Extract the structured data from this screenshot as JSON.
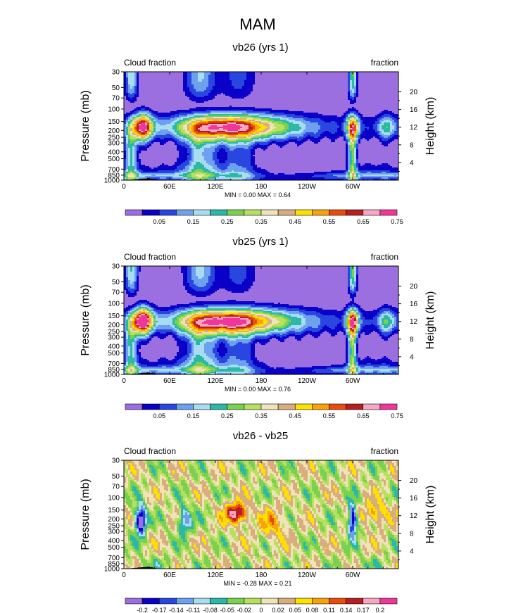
{
  "figure": {
    "title": "MAM"
  },
  "panels": [
    {
      "title": "vb26 (yrs 1)",
      "left_label": "Cloud fraction",
      "right_label": "fraction",
      "ylabel_left": "Pressure (mb)",
      "ylabel_right": "Height (km)",
      "minmax": "MIN =   0.00  MAX =   0.64",
      "kind": "abs",
      "max": 0.64,
      "colorbar": {
        "labels": [
          "0.05",
          "0.15",
          "0.25",
          "0.35",
          "0.45",
          "0.55",
          "0.65",
          "0.75"
        ]
      }
    },
    {
      "title": "vb25 (yrs 1)",
      "left_label": "Cloud fraction",
      "right_label": "fraction",
      "ylabel_left": "Pressure (mb)",
      "ylabel_right": "Height (km)",
      "minmax": "MIN =   0.00  MAX =   0.76",
      "kind": "abs",
      "max": 0.76,
      "colorbar": {
        "labels": [
          "0.05",
          "0.15",
          "0.25",
          "0.35",
          "0.45",
          "0.55",
          "0.65",
          "0.75"
        ]
      }
    },
    {
      "title": "vb26 - vb25",
      "left_label": "Cloud fraction",
      "right_label": "fraction",
      "ylabel_left": "Pressure (mb)",
      "ylabel_right": "Height (km)",
      "minmax": "MIN =  -0.28  MAX =   0.21",
      "kind": "diff",
      "max": 0.21,
      "colorbar": {
        "labels": [
          "-0.2",
          "-0.17",
          "-0.14",
          "-0.11",
          "-0.08",
          "-0.05",
          "-0.02",
          "0",
          "0.02",
          "0.05",
          "0.08",
          "0.11",
          "0.14",
          "0.17",
          "0.2"
        ]
      }
    }
  ],
  "chart_data": {
    "type": "heatmap",
    "title": "MAM",
    "variable": "Cloud fraction",
    "units": "fraction",
    "x_ticks": [
      "0",
      "60E",
      "120E",
      "180",
      "120W",
      "60W"
    ],
    "x_tick_lon": [
      0,
      60,
      120,
      180,
      240,
      300
    ],
    "xlim": [
      0,
      360
    ],
    "y_ticks_pressure": [
      "30",
      "50",
      "70",
      "100",
      "150",
      "200",
      "250",
      "300",
      "400",
      "500",
      "700",
      "850",
      "1000"
    ],
    "y_tick_values": [
      30,
      50,
      70,
      100,
      150,
      200,
      250,
      300,
      400,
      500,
      700,
      850,
      1000
    ],
    "ylim_pressure": [
      1000,
      30
    ],
    "y_ticks_height_km": [
      "20",
      "16",
      "12",
      "8",
      "4"
    ],
    "height_tick_values_km": [
      20,
      16,
      12,
      8,
      4
    ],
    "abs_levels": [
      0.05,
      0.1,
      0.15,
      0.2,
      0.25,
      0.3,
      0.35,
      0.4,
      0.45,
      0.5,
      0.55,
      0.6,
      0.65,
      0.7,
      0.75
    ],
    "abs_colors": [
      "#9b6fe0",
      "#0a00c8",
      "#2a46e0",
      "#6da0ee",
      "#a8dcf0",
      "#2bb8a8",
      "#7ad04f",
      "#b8e060",
      "#efe3b7",
      "#d9ad7d",
      "#fde100",
      "#f8a30c",
      "#ec4b0b",
      "#b51f1f",
      "#f7a6c4",
      "#f0369a"
    ],
    "diff_levels": [
      -0.2,
      -0.17,
      -0.14,
      -0.11,
      -0.08,
      -0.05,
      -0.02,
      0,
      0.02,
      0.05,
      0.08,
      0.11,
      0.14,
      0.17,
      0.2
    ],
    "diff_colors": [
      "#9b6fe0",
      "#0a00c8",
      "#2a46e0",
      "#6da0ee",
      "#a8dcf0",
      "#2bb8a8",
      "#7ad04f",
      "#b8e060",
      "#efe3b7",
      "#d9ad7d",
      "#fde100",
      "#f8a30c",
      "#ec4b0b",
      "#b51f1f",
      "#f7a6c4",
      "#f0369a"
    ],
    "panels": [
      {
        "name": "vb26 (yrs 1)",
        "min": 0.0,
        "max": 0.64
      },
      {
        "name": "vb25 (yrs 1)",
        "min": 0.0,
        "max": 0.76
      },
      {
        "name": "vb26 - vb25",
        "min": -0.28,
        "max": 0.21
      }
    ]
  }
}
